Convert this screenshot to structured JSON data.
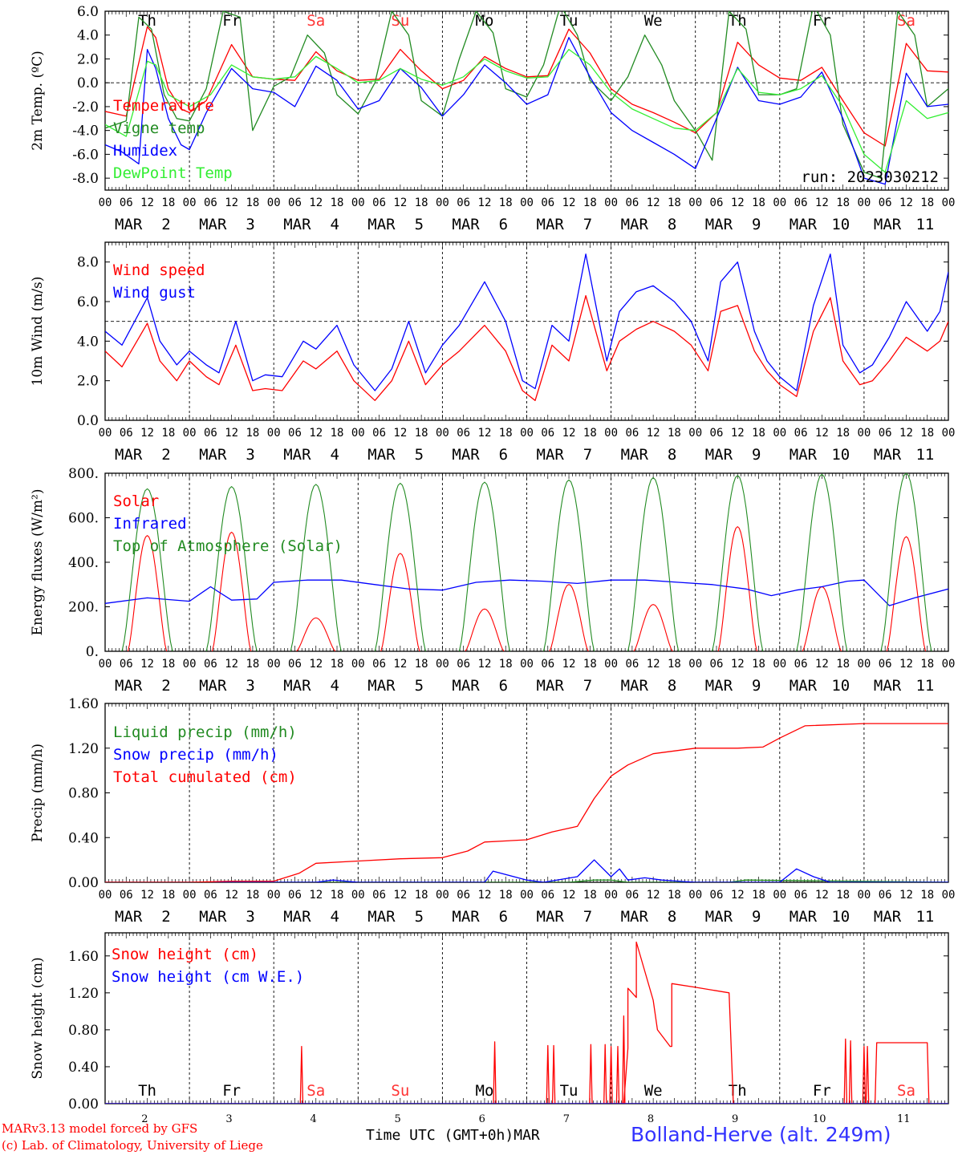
{
  "colors": {
    "red": "#ff0000",
    "green": "#228b22",
    "blue": "#0000ff",
    "lightgreen": "#33ee33",
    "salmon": "#ff3333",
    "axis": "#000000"
  },
  "days": [
    "Th",
    "Fr",
    "Sa",
    "Su",
    "Mo",
    "Tu",
    "We",
    "Th",
    "Fr",
    "Sa"
  ],
  "weekend_days": [
    "Sa",
    "Su"
  ],
  "hour_labels": [
    "00",
    "06",
    "12",
    "18"
  ],
  "date_labels": [
    "MAR 2",
    "MAR 3",
    "MAR 4",
    "MAR 5",
    "MAR 6",
    "MAR 7",
    "MAR 8",
    "MAR 9",
    "MAR 10",
    "MAR 11"
  ],
  "bottom_day_numbers": [
    "2",
    "3",
    "4",
    "5",
    "6",
    "7",
    "8",
    "9",
    "10",
    "11"
  ],
  "run_label": "run: 2023030212",
  "footer": {
    "credit_line1": "MARv3.13 model forced by GFS",
    "credit_line2": "(c) Lab. of Climatology, University of Liege",
    "xlabel": "Time UTC (GMT+0h)MAR",
    "station": "Bolland-Herve (alt. 249m)"
  },
  "chart_data": [
    {
      "type": "line",
      "title": "",
      "ylabel": "2m Temp. (ºC)",
      "ylim": [
        -9,
        6
      ],
      "yticks": [
        "6.0",
        "4.0",
        "2.0",
        "0.0",
        "-2.0",
        "-4.0",
        "-6.0",
        "-8.0"
      ],
      "ytick_values": [
        6,
        4,
        2,
        0,
        -2,
        -4,
        -6,
        -8
      ],
      "hline": 0,
      "x_unit": "days since MAR 2 00 UTC",
      "series": [
        {
          "name": "Temperature",
          "color": "#ff0000",
          "x": [
            0,
            0.25,
            0.5,
            0.6,
            0.75,
            0.9,
            1.0,
            1.2,
            1.5,
            1.75,
            2.0,
            2.25,
            2.5,
            2.75,
            3.0,
            3.25,
            3.5,
            3.75,
            4.0,
            4.25,
            4.5,
            4.75,
            5.0,
            5.25,
            5.5,
            5.75,
            6.0,
            6.25,
            6.5,
            6.75,
            7.0,
            7.25,
            7.5,
            7.75,
            8.0,
            8.25,
            8.5,
            8.75,
            9.0,
            9.25,
            9.5,
            9.75,
            10.0
          ],
          "values": [
            -2.4,
            -2.8,
            4.7,
            3.8,
            -0.5,
            -2.2,
            -2.5,
            -1.5,
            3.2,
            0.5,
            0.3,
            0.2,
            2.6,
            1.0,
            0.2,
            0.3,
            2.8,
            1.0,
            -0.5,
            0.2,
            2.2,
            1.2,
            0.5,
            0.6,
            4.5,
            2.5,
            -0.5,
            -1.8,
            -2.5,
            -3.3,
            -4.2,
            -2.5,
            3.4,
            1.5,
            0.4,
            0.2,
            1.3,
            -1.5,
            -4.2,
            -5.3,
            3.3,
            1.0,
            0.9
          ]
        },
        {
          "name": "Vigne temp",
          "color": "#228b22",
          "x": [
            0,
            0.25,
            0.4,
            0.55,
            0.7,
            0.85,
            1.0,
            1.2,
            1.4,
            1.6,
            1.75,
            2.0,
            2.2,
            2.4,
            2.6,
            2.75,
            3.0,
            3.2,
            3.4,
            3.6,
            3.75,
            4.0,
            4.2,
            4.4,
            4.6,
            4.75,
            5.0,
            5.2,
            5.4,
            5.6,
            5.75,
            6.0,
            6.2,
            6.4,
            6.6,
            6.75,
            7.0,
            7.2,
            7.4,
            7.6,
            7.75,
            8.0,
            8.2,
            8.4,
            8.6,
            8.75,
            9.0,
            9.2,
            9.4,
            9.6,
            9.75,
            10.0
          ],
          "values": [
            -3.8,
            -3.2,
            5.5,
            4.5,
            -1.0,
            -3.0,
            -3.2,
            -0.5,
            6.0,
            5.5,
            -4.0,
            -0.3,
            0.5,
            4.0,
            2.5,
            -1.0,
            -2.6,
            0.0,
            6.0,
            4.0,
            -1.5,
            -2.8,
            2.0,
            6.0,
            4.2,
            -0.5,
            -1.2,
            1.5,
            6.5,
            4.0,
            0.2,
            -1.5,
            0.5,
            4.0,
            1.5,
            -1.5,
            -4.0,
            -6.5,
            6.0,
            4.5,
            -1.0,
            -1.0,
            -0.5,
            6.5,
            4.0,
            -3.5,
            -7.5,
            -8.0,
            6.0,
            4.0,
            -2.0,
            -0.5
          ]
        },
        {
          "name": "Humidex",
          "color": "#0000ff",
          "x": [
            0,
            0.2,
            0.4,
            0.5,
            0.6,
            0.75,
            0.9,
            1.0,
            1.2,
            1.5,
            1.75,
            2.0,
            2.25,
            2.5,
            2.75,
            3.0,
            3.25,
            3.5,
            3.75,
            4.0,
            4.25,
            4.5,
            4.75,
            5.0,
            5.25,
            5.5,
            5.75,
            6.0,
            6.25,
            6.5,
            6.75,
            7.0,
            7.25,
            7.5,
            7.75,
            8.0,
            8.25,
            8.5,
            8.75,
            9.0,
            9.25,
            9.5,
            9.75,
            10.0
          ],
          "values": [
            -5.2,
            -5.8,
            -6.8,
            2.8,
            1.2,
            -3.0,
            -5.2,
            -5.6,
            -2.5,
            1.2,
            -0.5,
            -0.8,
            -2.0,
            1.4,
            0.2,
            -2.2,
            -1.5,
            1.2,
            -0.4,
            -2.8,
            -1.0,
            1.5,
            0.0,
            -1.8,
            -1.0,
            3.8,
            0.5,
            -2.5,
            -4.0,
            -5.0,
            -6.0,
            -7.2,
            -3.0,
            1.3,
            -1.5,
            -1.8,
            -1.2,
            0.9,
            -3.0,
            -8.0,
            -8.5,
            0.8,
            -2.0,
            -1.8
          ]
        },
        {
          "name": "DewPoint Temp",
          "color": "#33ee33",
          "x": [
            0,
            0.25,
            0.5,
            0.6,
            0.75,
            1.0,
            1.25,
            1.5,
            1.75,
            2.0,
            2.25,
            2.5,
            2.75,
            3.0,
            3.25,
            3.5,
            3.75,
            4.0,
            4.25,
            4.5,
            4.75,
            5.0,
            5.25,
            5.5,
            5.75,
            6.0,
            6.25,
            6.5,
            6.75,
            7.0,
            7.25,
            7.5,
            7.75,
            8.0,
            8.25,
            8.5,
            8.75,
            9.0,
            9.25,
            9.5,
            9.75,
            10.0
          ],
          "values": [
            -3.5,
            -4.5,
            1.8,
            1.5,
            -1.0,
            -2.0,
            -1.0,
            1.5,
            0.5,
            0.3,
            0.5,
            2.2,
            1.2,
            0.0,
            0.2,
            1.2,
            0.3,
            -0.2,
            0.5,
            2.0,
            1.0,
            0.4,
            0.5,
            2.8,
            1.5,
            -0.8,
            -2.2,
            -3.0,
            -3.8,
            -4.0,
            -2.5,
            1.2,
            -0.8,
            -1.0,
            -0.5,
            0.6,
            -2.0,
            -6.0,
            -7.5,
            -1.5,
            -3.0,
            -2.5
          ]
        }
      ]
    },
    {
      "type": "line",
      "title": "",
      "ylabel": "10m Wind (m/s)",
      "ylim": [
        0,
        9
      ],
      "yticks": [
        "8.0",
        "6.0",
        "4.0",
        "2.0",
        "0.0"
      ],
      "ytick_values": [
        8,
        6,
        4,
        2,
        0
      ],
      "hline": 5,
      "x_unit": "days since MAR 2 00 UTC",
      "series": [
        {
          "name": "Wind speed",
          "color": "#ff0000",
          "x": [
            0,
            0.2,
            0.5,
            0.65,
            0.85,
            1.0,
            1.2,
            1.35,
            1.55,
            1.75,
            1.9,
            2.1,
            2.35,
            2.5,
            2.75,
            2.95,
            3.2,
            3.4,
            3.6,
            3.8,
            4.0,
            4.2,
            4.5,
            4.75,
            4.95,
            5.1,
            5.3,
            5.5,
            5.7,
            5.95,
            6.1,
            6.3,
            6.5,
            6.75,
            6.95,
            7.15,
            7.3,
            7.5,
            7.7,
            7.85,
            8.0,
            8.2,
            8.4,
            8.6,
            8.75,
            8.95,
            9.1,
            9.3,
            9.5,
            9.75,
            9.9,
            10.0
          ],
          "values": [
            3.5,
            2.7,
            4.9,
            3.0,
            2.0,
            3.0,
            2.2,
            1.8,
            3.8,
            1.5,
            1.6,
            1.5,
            3.0,
            2.6,
            3.5,
            2.0,
            1.0,
            2.0,
            4.0,
            1.8,
            2.8,
            3.5,
            4.8,
            3.5,
            1.5,
            1.0,
            3.8,
            3.0,
            6.3,
            2.5,
            4.0,
            4.6,
            5.0,
            4.5,
            3.8,
            2.5,
            5.5,
            5.8,
            3.5,
            2.5,
            1.8,
            1.2,
            4.5,
            6.2,
            3.0,
            1.8,
            2.0,
            3.0,
            4.2,
            3.5,
            4.0,
            5.0
          ]
        },
        {
          "name": "Wind gust",
          "color": "#0000ff",
          "x": [
            0,
            0.2,
            0.5,
            0.65,
            0.85,
            1.0,
            1.2,
            1.35,
            1.55,
            1.75,
            1.9,
            2.1,
            2.35,
            2.5,
            2.75,
            2.95,
            3.2,
            3.4,
            3.6,
            3.8,
            4.0,
            4.2,
            4.5,
            4.75,
            4.95,
            5.1,
            5.3,
            5.5,
            5.7,
            5.95,
            6.1,
            6.3,
            6.5,
            6.75,
            6.95,
            7.15,
            7.3,
            7.5,
            7.7,
            7.85,
            8.0,
            8.2,
            8.4,
            8.6,
            8.75,
            8.95,
            9.1,
            9.3,
            9.5,
            9.75,
            9.9,
            10.0
          ],
          "values": [
            4.5,
            3.8,
            6.2,
            4.0,
            2.8,
            3.5,
            2.8,
            2.4,
            5.0,
            2.0,
            2.3,
            2.2,
            4.0,
            3.6,
            4.8,
            2.8,
            1.5,
            2.6,
            5.0,
            2.4,
            3.8,
            4.8,
            7.0,
            5.0,
            2.0,
            1.6,
            4.8,
            4.0,
            8.4,
            3.0,
            5.5,
            6.5,
            6.8,
            6.0,
            5.0,
            3.0,
            7.0,
            8.0,
            4.5,
            3.0,
            2.2,
            1.5,
            5.8,
            8.4,
            3.8,
            2.4,
            2.8,
            4.2,
            6.0,
            4.5,
            5.5,
            7.5
          ]
        }
      ]
    },
    {
      "type": "line",
      "title": "",
      "ylabel": "Energy fluxes (W/m²)",
      "ylim": [
        0,
        800
      ],
      "yticks": [
        "800.",
        "600.",
        "400.",
        "200.",
        "0."
      ],
      "ytick_values": [
        800,
        600,
        400,
        200,
        0
      ],
      "x_unit": "days since MAR 2 00 UTC",
      "series": [
        {
          "name": "Solar",
          "color": "#ff0000",
          "peaks": [
            520,
            535,
            150,
            440,
            190,
            300,
            210,
            560,
            290,
            515
          ]
        },
        {
          "name": "Infrared",
          "color": "#0000ff",
          "x": [
            0,
            0.5,
            1.0,
            1.25,
            1.5,
            1.8,
            2.0,
            2.4,
            2.8,
            3.2,
            3.6,
            4.0,
            4.4,
            4.8,
            5.2,
            5.6,
            6.0,
            6.4,
            6.8,
            7.2,
            7.6,
            7.9,
            8.2,
            8.5,
            8.8,
            9.0,
            9.3,
            9.6,
            10.0
          ],
          "values": [
            215,
            240,
            225,
            290,
            230,
            235,
            310,
            320,
            320,
            300,
            280,
            275,
            310,
            320,
            315,
            305,
            320,
            320,
            310,
            300,
            280,
            250,
            275,
            290,
            315,
            320,
            205,
            240,
            280
          ]
        },
        {
          "name": "Top of Atmosphere (Solar)",
          "color": "#228b22",
          "peaks": [
            730,
            740,
            750,
            755,
            760,
            770,
            780,
            790,
            795,
            800
          ]
        }
      ]
    },
    {
      "type": "line",
      "title": "",
      "ylabel": "Precip (mm/h)",
      "ylim": [
        0,
        1.6
      ],
      "yticks": [
        "1.60",
        "1.20",
        "0.80",
        "0.40",
        "0.00"
      ],
      "ytick_values": [
        1.6,
        1.2,
        0.8,
        0.4,
        0
      ],
      "x_unit": "days since MAR 2 00 UTC",
      "series": [
        {
          "name": "Liquid precip (mm/h)",
          "color": "#228b22",
          "x": [
            0,
            5.5,
            5.8,
            6.0,
            6.2,
            7.4,
            7.6,
            10.0
          ],
          "values": [
            0,
            0,
            0.02,
            0.02,
            0,
            0,
            0.02,
            0
          ]
        },
        {
          "name": "Snow precip (mm/h)",
          "color": "#0000ff",
          "x": [
            0,
            2.5,
            2.7,
            3.0,
            4.5,
            4.6,
            5.0,
            5.2,
            5.6,
            5.8,
            6.0,
            6.1,
            6.2,
            6.4,
            6.6,
            6.8,
            7.0,
            8.0,
            8.2,
            8.4,
            8.6,
            9.0,
            10.0
          ],
          "values": [
            0,
            0,
            0.02,
            0,
            0,
            0.1,
            0.02,
            0,
            0.05,
            0.2,
            0.05,
            0.12,
            0.02,
            0.04,
            0.02,
            0.01,
            0,
            0,
            0.12,
            0.05,
            0,
            0,
            0
          ]
        },
        {
          "name": "Total cumulated (cm)",
          "color": "#ff0000",
          "x": [
            0,
            1.0,
            1.5,
            2.0,
            2.3,
            2.5,
            3.0,
            3.5,
            4.0,
            4.3,
            4.5,
            5.0,
            5.3,
            5.6,
            5.8,
            6.0,
            6.2,
            6.5,
            7.0,
            7.5,
            7.8,
            8.0,
            8.3,
            9.0,
            9.3,
            10.0
          ],
          "values": [
            0,
            0,
            0.01,
            0.01,
            0.08,
            0.17,
            0.19,
            0.21,
            0.22,
            0.28,
            0.36,
            0.38,
            0.45,
            0.5,
            0.75,
            0.95,
            1.05,
            1.15,
            1.2,
            1.2,
            1.21,
            1.29,
            1.4,
            1.42,
            1.42,
            1.42
          ]
        }
      ]
    },
    {
      "type": "line",
      "title": "",
      "ylabel": "Snow height (cm)",
      "ylim": [
        0,
        1.85
      ],
      "yticks": [
        "1.60",
        "1.20",
        "0.80",
        "0.40",
        "0.00"
      ],
      "ytick_values": [
        1.6,
        1.2,
        0.8,
        0.4,
        0
      ],
      "x_unit": "days since MAR 2 00 UTC",
      "series": [
        {
          "name": "Snow height (cm)",
          "color": "#ff0000",
          "spikes": [
            [
              2.33,
              0.62
            ],
            [
              4.62,
              0.67
            ],
            [
              5.25,
              0.63
            ],
            [
              5.32,
              0.63
            ],
            [
              5.76,
              0.64
            ],
            [
              5.93,
              0.64
            ],
            [
              6.0,
              0.62
            ],
            [
              6.08,
              0.62
            ],
            [
              6.15,
              0.95
            ]
          ],
          "x": [
            6.15,
            6.2,
            6.2,
            6.3,
            6.3,
            6.5,
            6.5,
            6.55,
            6.7,
            6.72,
            6.72,
            7.0,
            7.4,
            7.45
          ],
          "values": [
            0,
            0.6,
            1.25,
            1.15,
            1.75,
            1.12,
            1.12,
            0.8,
            0.62,
            0.62,
            1.3,
            1.26,
            1.2,
            0.0
          ],
          "spikes2": [
            [
              8.78,
              0.7
            ],
            [
              8.84,
              0.68
            ],
            [
              9.0,
              0.62
            ],
            [
              9.04,
              0.62
            ]
          ],
          "plateau": [
            [
              9.15,
              0.66
            ],
            [
              9.75,
              0.66
            ]
          ]
        },
        {
          "name": "Snow height (cm W.E.)",
          "color": "#0000ff",
          "values": [
            0
          ]
        }
      ]
    }
  ]
}
